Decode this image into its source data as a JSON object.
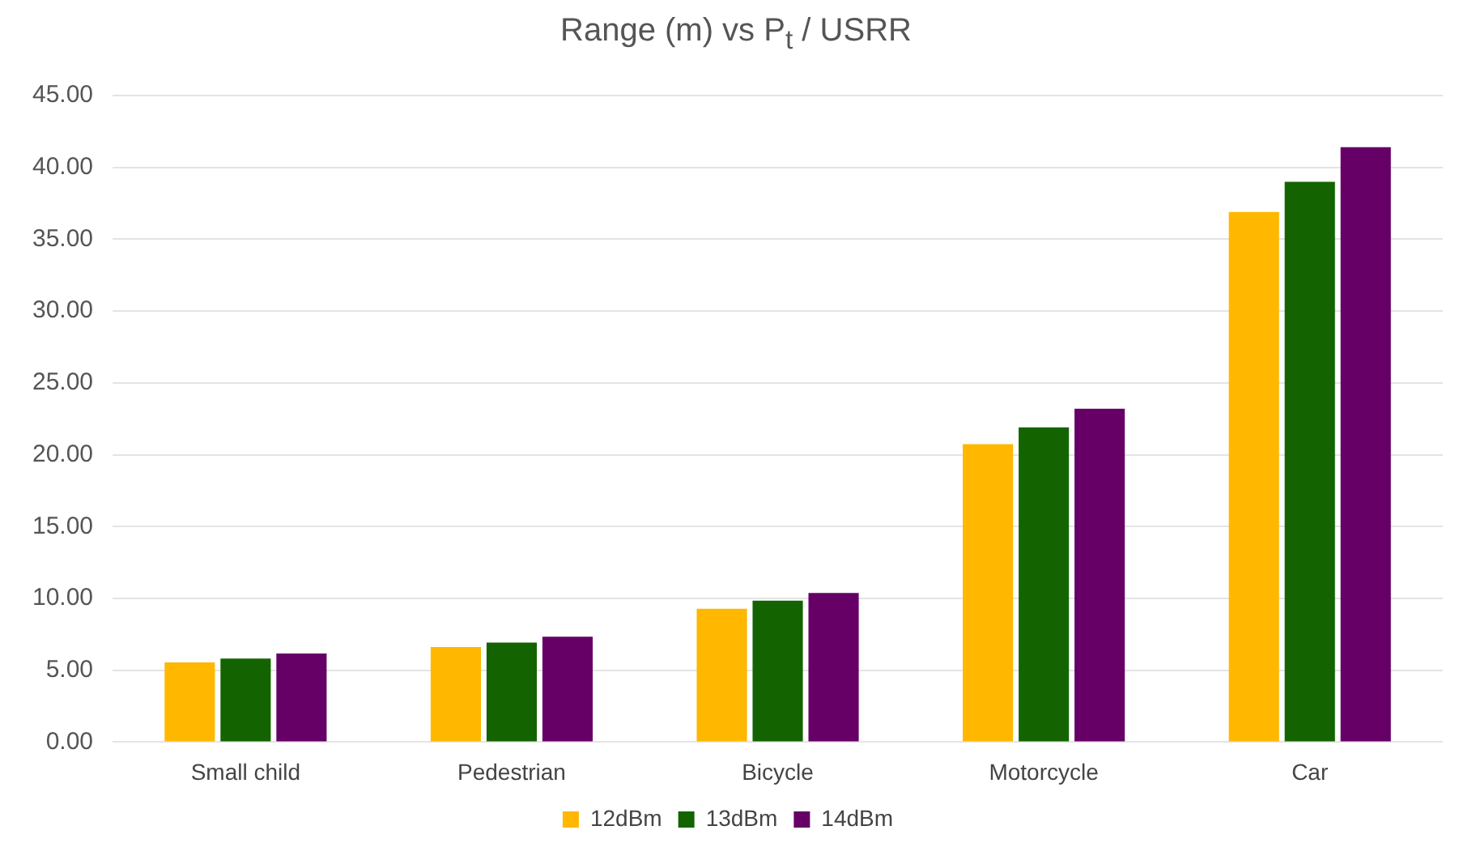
{
  "chart_data": {
    "type": "bar",
    "title": "Range (m) vs P$_{t}$ / USRR",
    "categories": [
      "Small child",
      "Pedestrian",
      "Bicycle",
      "Motorcycle",
      "Car"
    ],
    "series": [
      {
        "name": "12dBm",
        "color": "#ffb700",
        "values": [
          5.55,
          6.62,
          9.28,
          20.74,
          36.9
        ]
      },
      {
        "name": "13dBm",
        "color": "#136400",
        "values": [
          5.82,
          6.92,
          9.85,
          21.9,
          39.0
        ]
      },
      {
        "name": "14dBm",
        "color": "#660066",
        "values": [
          6.16,
          7.34,
          10.38,
          23.2,
          41.4
        ]
      }
    ],
    "ylim": [
      0,
      45
    ],
    "yticks": [
      {
        "value": 0,
        "label": "0.00"
      },
      {
        "value": 5,
        "label": "5.00"
      },
      {
        "value": 10,
        "label": "10.00"
      },
      {
        "value": 15,
        "label": "15.00"
      },
      {
        "value": 20,
        "label": "20.00"
      },
      {
        "value": 25,
        "label": "25.00"
      },
      {
        "value": 30,
        "label": "30.00"
      },
      {
        "value": 35,
        "label": "35.00"
      },
      {
        "value": 40,
        "label": "40.00"
      },
      {
        "value": 45,
        "label": "45.00"
      }
    ],
    "grid": "y",
    "legend": "bottom"
  }
}
